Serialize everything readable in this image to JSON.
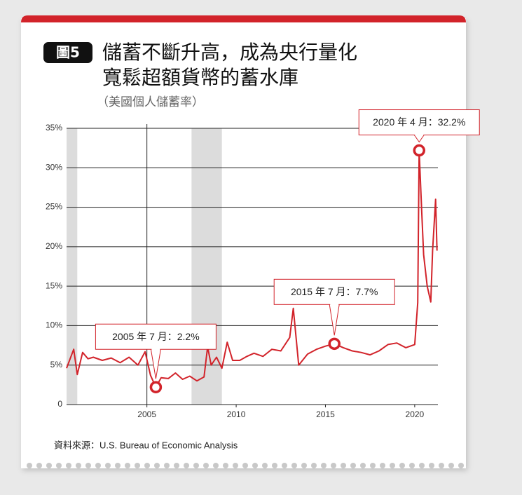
{
  "chart_data": {
    "type": "line",
    "badge": "圖5",
    "title": [
      "儲蓄不斷升高，成為央行量化",
      "寬鬆超額貨幣的蓄水庫"
    ],
    "subtitle": "（美國個人儲蓄率）",
    "source": "資料來源：U.S. Bureau of Economic Analysis",
    "x": [
      2000.5,
      2000.9,
      2001.1,
      2001.4,
      2001.7,
      2002.0,
      2002.5,
      2003.0,
      2003.5,
      2004.0,
      2004.5,
      2004.9,
      2005.2,
      2005.5,
      2005.8,
      2006.2,
      2006.6,
      2007.0,
      2007.4,
      2007.8,
      2008.2,
      2008.4,
      2008.6,
      2008.9,
      2009.2,
      2009.5,
      2009.8,
      2010.2,
      2010.6,
      2011.0,
      2011.5,
      2012.0,
      2012.5,
      2013.0,
      2013.2,
      2013.5,
      2014.0,
      2014.5,
      2015.0,
      2015.5,
      2016.0,
      2016.5,
      2017.0,
      2017.5,
      2018.0,
      2018.5,
      2019.0,
      2019.5,
      2020.0,
      2020.17,
      2020.25,
      2020.4,
      2020.5,
      2020.7,
      2020.9,
      2021.0,
      2021.17,
      2021.25
    ],
    "series": [
      {
        "name": "個人儲蓄率",
        "color": "#d2232a",
        "values": [
          4.6,
          7.0,
          3.8,
          6.6,
          5.8,
          6.0,
          5.6,
          5.9,
          5.3,
          6.0,
          5.0,
          6.7,
          3.7,
          2.2,
          3.4,
          3.3,
          4.0,
          3.2,
          3.6,
          3.0,
          3.5,
          7.3,
          5.0,
          6.0,
          4.6,
          7.9,
          5.6,
          5.6,
          6.1,
          6.5,
          6.1,
          7.0,
          6.8,
          8.5,
          12.2,
          5.0,
          6.4,
          7.0,
          7.4,
          7.7,
          7.2,
          6.8,
          6.6,
          6.3,
          6.8,
          7.6,
          7.8,
          7.2,
          7.6,
          12.9,
          32.2,
          24.0,
          19.0,
          15.0,
          13.0,
          19.5,
          26.0,
          19.5
        ]
      }
    ],
    "xlim": [
      2000.5,
      2021.3
    ],
    "ylim": [
      0,
      35
    ],
    "xticks": [
      2005,
      2010,
      2015,
      2020
    ],
    "yticks": [
      0,
      {
        "value": 5,
        "label": "5%"
      },
      {
        "value": 10,
        "label": "10%"
      },
      {
        "value": 15,
        "label": "15%"
      },
      {
        "value": 20,
        "label": "20%"
      },
      {
        "value": 25,
        "label": "25%"
      },
      {
        "value": 30,
        "label": "30%"
      },
      {
        "value": 35,
        "label": "35%"
      }
    ],
    "grid": true,
    "vline": 2005,
    "recessions": [
      [
        2000.5,
        2001.1
      ],
      [
        2007.5,
        2009.2
      ]
    ],
    "annotations": [
      {
        "text": "2005 年 7 月：2.2%",
        "x": 2005.5,
        "y": 2.2
      },
      {
        "text": "2015 年 7 月：7.7%",
        "x": 2015.5,
        "y": 7.7
      },
      {
        "text": "2020 年 4 月：32.2%",
        "x": 2020.25,
        "y": 32.2
      }
    ]
  }
}
